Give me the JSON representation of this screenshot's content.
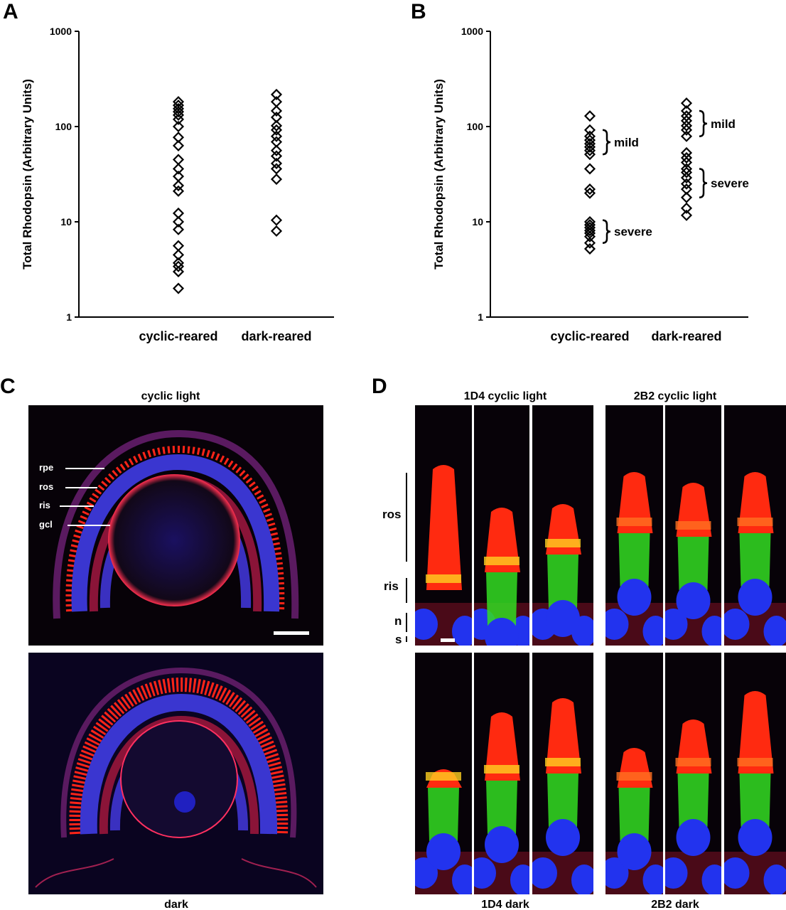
{
  "panels": {
    "A": {
      "letter": "A"
    },
    "B": {
      "letter": "B"
    },
    "C": {
      "letter": "C",
      "top_title": "cyclic light",
      "bottom_title": "dark",
      "layer_labels": [
        "rpe",
        "ros",
        "ris",
        "gcl"
      ]
    },
    "D": {
      "letter": "D",
      "titles": [
        "1D4 cyclic light",
        "2B2 cyclic light",
        "1D4 dark",
        "2B2 dark"
      ],
      "side_labels": [
        "ros",
        "ris",
        "n",
        "s"
      ]
    }
  },
  "colors": {
    "rhodopsin": "#ff2a10",
    "inner_segment": "#33dd22",
    "nuclei": "#2233ee",
    "background": "#070208"
  },
  "chart_data": [
    {
      "panel": "A",
      "type": "scatter",
      "marker": "open-diamond",
      "ylabel": "Total Rhodopsin (Arbitrary Units)",
      "yscale": "log",
      "ylim": [
        1,
        1000
      ],
      "yticks": [
        "1",
        "10",
        "100",
        "1000"
      ],
      "categories": [
        "cyclic-reared",
        "dark-reared"
      ],
      "series": [
        {
          "category": "cyclic-reared",
          "values": [
            182,
            167,
            154,
            143,
            132,
            119,
            100,
            77,
            63,
            45,
            36,
            30,
            24,
            21,
            12.3,
            10,
            8.3,
            5.6,
            4.5,
            3.7,
            3.4,
            3.0,
            2.0
          ]
        },
        {
          "category": "dark-reared",
          "values": [
            217,
            182,
            146,
            125,
            102,
            92,
            79,
            69,
            56,
            49,
            41,
            36,
            28,
            10.4,
            8.0
          ]
        }
      ],
      "grid": false
    },
    {
      "panel": "B",
      "type": "scatter",
      "marker": "open-diamond",
      "ylabel": "Total Rhodopsin (Arbitrary Units)",
      "yscale": "log",
      "ylim": [
        1,
        1000
      ],
      "yticks": [
        "1",
        "10",
        "100",
        "1000"
      ],
      "categories": [
        "cyclic-reared",
        "dark-reared"
      ],
      "series": [
        {
          "category": "cyclic-reared",
          "values": [
            129,
            92,
            79,
            72,
            66,
            61,
            56,
            51,
            36,
            22,
            20,
            10,
            9.3,
            8.7,
            8.1,
            7.6,
            7.0,
            6.0,
            5.2
          ]
        },
        {
          "category": "dark-reared",
          "values": [
            176,
            146,
            129,
            115,
            102,
            92,
            79,
            53,
            47,
            42,
            36,
            33,
            29,
            25,
            22,
            18,
            13.9,
            11.7
          ]
        }
      ],
      "annotations": [
        {
          "category": "cyclic-reared",
          "text": "mild",
          "range": [
            51,
            92
          ]
        },
        {
          "category": "cyclic-reared",
          "text": "severe",
          "range": [
            6.0,
            10.4
          ]
        },
        {
          "category": "dark-reared",
          "text": "mild",
          "range": [
            79,
            146
          ]
        },
        {
          "category": "dark-reared",
          "text": "severe",
          "range": [
            18,
            36
          ]
        }
      ],
      "grid": false
    }
  ]
}
